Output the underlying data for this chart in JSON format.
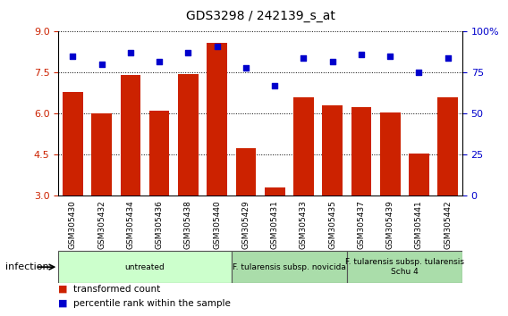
{
  "title": "GDS3298 / 242139_s_at",
  "samples": [
    "GSM305430",
    "GSM305432",
    "GSM305434",
    "GSM305436",
    "GSM305438",
    "GSM305440",
    "GSM305429",
    "GSM305431",
    "GSM305433",
    "GSM305435",
    "GSM305437",
    "GSM305439",
    "GSM305441",
    "GSM305442"
  ],
  "bar_values": [
    6.8,
    6.0,
    7.4,
    6.1,
    7.45,
    8.6,
    4.75,
    3.3,
    6.6,
    6.3,
    6.25,
    6.05,
    4.55,
    6.6
  ],
  "percentile_values": [
    85,
    80,
    87,
    82,
    87,
    91,
    78,
    67,
    84,
    82,
    86,
    85,
    75,
    84
  ],
  "bar_color": "#cc2200",
  "percentile_color": "#0000cc",
  "ylim_left": [
    3,
    9
  ],
  "ylim_right": [
    0,
    100
  ],
  "yticks_left": [
    3,
    4.5,
    6,
    7.5,
    9
  ],
  "yticks_right": [
    0,
    25,
    50,
    75,
    100
  ],
  "ytick_labels_right": [
    "0",
    "25",
    "50",
    "75",
    "100%"
  ],
  "groups": [
    {
      "label": "untreated",
      "start": 0,
      "end": 6,
      "color": "#ccffcc"
    },
    {
      "label": "F. tularensis subsp. novicida",
      "start": 6,
      "end": 10,
      "color": "#aaddaa"
    },
    {
      "label": "F. tularensis subsp. tularensis\nSchu 4",
      "start": 10,
      "end": 14,
      "color": "#aaddaa"
    }
  ],
  "infection_label": "infection",
  "legend_bar_label": "transformed count",
  "legend_percentile_label": "percentile rank within the sample",
  "tick_color_left": "#cc2200",
  "tick_color_right": "#0000cc",
  "label_bg_color": "#d8d8d8",
  "label_divider_color": "#ffffff"
}
